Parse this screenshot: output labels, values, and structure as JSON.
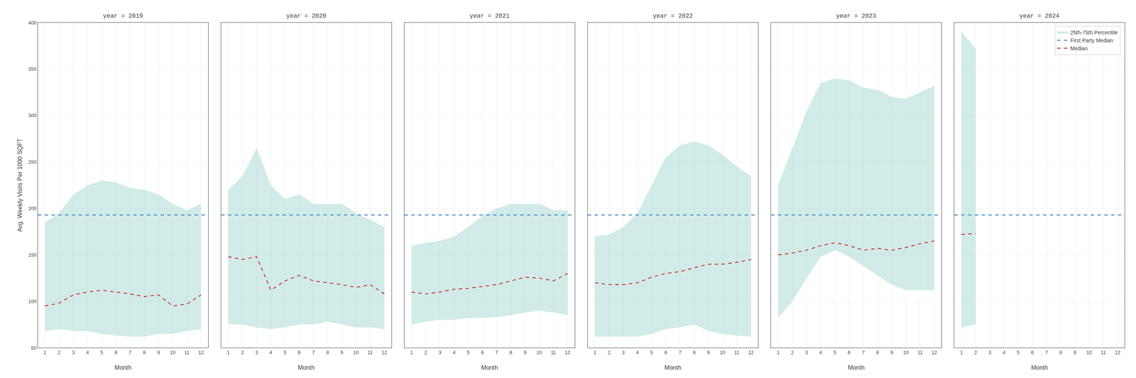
{
  "chart_data": [
    {
      "type": "line",
      "title": "year = 2019",
      "x_label": "Month",
      "y_label": "Avg. Weekly Visits Per 1000 SQFT",
      "xlim": [
        0.5,
        12.5
      ],
      "xticks": [
        1,
        2,
        3,
        4,
        5,
        6,
        7,
        8,
        9,
        10,
        11,
        12
      ],
      "ylim": [
        50,
        400
      ],
      "yticks": [
        50,
        100,
        150,
        200,
        250,
        300,
        350,
        400
      ],
      "grid": true,
      "x": [
        1,
        2,
        3,
        4,
        5,
        6,
        7,
        8,
        9,
        10,
        11,
        12
      ],
      "series": [
        {
          "name": "25th-75th Percentile",
          "type": "band",
          "color": "#99d4cc",
          "low": [
            68,
            70,
            68,
            68,
            65,
            63,
            62,
            62,
            65,
            65,
            68,
            70
          ],
          "high": [
            185,
            195,
            215,
            225,
            230,
            228,
            222,
            220,
            215,
            205,
            198,
            205
          ]
        },
        {
          "name": "First Party Median",
          "type": "hline",
          "color": "#4488cc",
          "line_style": "dashed",
          "value": 193
        },
        {
          "name": "Median",
          "type": "line",
          "color": "#cc2222",
          "line_style": "dashed",
          "values": [
            95,
            98,
            107,
            110,
            112,
            110,
            108,
            105,
            107,
            95,
            97,
            107
          ]
        }
      ]
    },
    {
      "type": "line",
      "title": "year = 2020",
      "x_label": "Month",
      "tick_labels": "x",
      "xlim": [
        0.5,
        12.5
      ],
      "xticks": [
        1,
        2,
        3,
        4,
        5,
        6,
        7,
        8,
        9,
        10,
        11,
        12
      ],
      "ylim": [
        50,
        400
      ],
      "yticks": [
        50,
        100,
        150,
        200,
        250,
        300,
        350,
        400
      ],
      "grid": true,
      "x": [
        1,
        2,
        3,
        4,
        5,
        6,
        7,
        8,
        9,
        10,
        11,
        12
      ],
      "series": [
        {
          "name": "25th-75th Percentile",
          "type": "band",
          "color": "#99d4cc",
          "low": [
            75,
            75,
            72,
            70,
            72,
            75,
            75,
            78,
            75,
            72,
            72,
            70
          ],
          "high": [
            220,
            235,
            265,
            225,
            210,
            215,
            205,
            205,
            205,
            195,
            188,
            180
          ]
        },
        {
          "name": "First Party Median",
          "type": "hline",
          "color": "#4488cc",
          "line_style": "dashed",
          "value": 193
        },
        {
          "name": "Median",
          "type": "line",
          "color": "#cc2222",
          "line_style": "dashed",
          "values": [
            148,
            145,
            148,
            112,
            122,
            128,
            122,
            120,
            118,
            115,
            118,
            108
          ]
        }
      ]
    },
    {
      "type": "line",
      "title": "year = 2021",
      "x_label": "Month",
      "tick_labels": "x",
      "xlim": [
        0.5,
        12.5
      ],
      "xticks": [
        1,
        2,
        3,
        4,
        5,
        6,
        7,
        8,
        9,
        10,
        11,
        12
      ],
      "ylim": [
        50,
        400
      ],
      "yticks": [
        50,
        100,
        150,
        200,
        250,
        300,
        350,
        400
      ],
      "grid": true,
      "x": [
        1,
        2,
        3,
        4,
        5,
        6,
        7,
        8,
        9,
        10,
        11,
        12
      ],
      "series": [
        {
          "name": "25th-75th Percentile",
          "type": "band",
          "color": "#99d4cc",
          "low": [
            75,
            78,
            80,
            80,
            82,
            82,
            83,
            85,
            88,
            90,
            88,
            85
          ],
          "high": [
            160,
            163,
            165,
            170,
            180,
            192,
            200,
            205,
            205,
            205,
            198,
            198
          ]
        },
        {
          "name": "First Party Median",
          "type": "hline",
          "color": "#4488cc",
          "line_style": "dashed",
          "value": 193
        },
        {
          "name": "Median",
          "type": "line",
          "color": "#cc2222",
          "line_style": "dashed",
          "values": [
            110,
            108,
            110,
            113,
            114,
            116,
            118,
            122,
            126,
            125,
            122,
            130
          ]
        }
      ]
    },
    {
      "type": "line",
      "title": "year = 2022",
      "x_label": "Month",
      "tick_labels": "x",
      "xlim": [
        0.5,
        12.5
      ],
      "xticks": [
        1,
        2,
        3,
        4,
        5,
        6,
        7,
        8,
        9,
        10,
        11,
        12
      ],
      "ylim": [
        50,
        400
      ],
      "yticks": [
        50,
        100,
        150,
        200,
        250,
        300,
        350,
        400
      ],
      "grid": true,
      "x": [
        1,
        2,
        3,
        4,
        5,
        6,
        7,
        8,
        9,
        10,
        11,
        12
      ],
      "series": [
        {
          "name": "25th-75th Percentile",
          "type": "band",
          "color": "#99d4cc",
          "low": [
            62,
            62,
            62,
            62,
            65,
            70,
            72,
            75,
            68,
            65,
            63,
            62
          ],
          "high": [
            170,
            172,
            180,
            195,
            225,
            255,
            268,
            272,
            268,
            258,
            245,
            235
          ]
        },
        {
          "name": "First Party Median",
          "type": "hline",
          "color": "#4488cc",
          "line_style": "dashed",
          "value": 193
        },
        {
          "name": "Median",
          "type": "line",
          "color": "#cc2222",
          "line_style": "dashed",
          "values": [
            120,
            118,
            118,
            120,
            126,
            130,
            132,
            136,
            140,
            140,
            142,
            145
          ]
        }
      ]
    },
    {
      "type": "line",
      "title": "year = 2023",
      "x_label": "Month",
      "tick_labels": "x",
      "xlim": [
        0.5,
        12.5
      ],
      "xticks": [
        1,
        2,
        3,
        4,
        5,
        6,
        7,
        8,
        9,
        10,
        11,
        12
      ],
      "ylim": [
        50,
        400
      ],
      "yticks": [
        50,
        100,
        150,
        200,
        250,
        300,
        350,
        400
      ],
      "grid": true,
      "x": [
        1,
        2,
        3,
        4,
        5,
        6,
        7,
        8,
        9,
        10,
        11,
        12
      ],
      "series": [
        {
          "name": "25th-75th Percentile",
          "type": "band",
          "color": "#99d4cc",
          "low": [
            82,
            100,
            125,
            148,
            155,
            148,
            138,
            128,
            118,
            112,
            112,
            112
          ],
          "high": [
            225,
            265,
            305,
            335,
            340,
            338,
            330,
            328,
            320,
            318,
            325,
            332
          ]
        },
        {
          "name": "First Party Median",
          "type": "hline",
          "color": "#4488cc",
          "line_style": "dashed",
          "value": 193
        },
        {
          "name": "Median",
          "type": "line",
          "color": "#cc2222",
          "line_style": "dashed",
          "values": [
            150,
            152,
            155,
            160,
            163,
            160,
            155,
            157,
            155,
            158,
            162,
            165
          ]
        }
      ]
    },
    {
      "type": "line",
      "title": "year = 2024",
      "x_label": "Month",
      "tick_labels": "x",
      "legend": "upper right",
      "xlim": [
        0.5,
        12.5
      ],
      "xticks": [
        1,
        2,
        3,
        4,
        5,
        6,
        7,
        8,
        9,
        10,
        11,
        12
      ],
      "ylim": [
        50,
        400
      ],
      "yticks": [
        50,
        100,
        150,
        200,
        250,
        300,
        350,
        400
      ],
      "grid": true,
      "x": [
        1,
        2
      ],
      "series": [
        {
          "name": "25th-75th Percentile",
          "type": "band",
          "color": "#99d4cc",
          "low": [
            72,
            75
          ],
          "high": [
            390,
            372
          ]
        },
        {
          "name": "First Party Median",
          "type": "hline",
          "color": "#4488cc",
          "line_style": "dashed",
          "value": 193
        },
        {
          "name": "Median",
          "type": "line",
          "color": "#cc2222",
          "line_style": "dashed",
          "values": [
            172,
            173
          ]
        }
      ]
    }
  ]
}
